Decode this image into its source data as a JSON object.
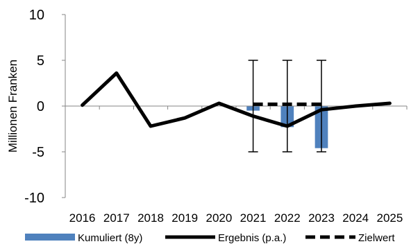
{
  "chart_data": {
    "type": "bar",
    "ylabel": "Millionen Franken",
    "ylim": [
      -10,
      10
    ],
    "yticks": [
      10,
      5,
      0,
      -5,
      -10
    ],
    "ytick_labels": [
      "10",
      "5",
      "0",
      "-5",
      "-10"
    ],
    "categories": [
      "2016",
      "2017",
      "2018",
      "2019",
      "2020",
      "2021",
      "2022",
      "2023",
      "2024",
      "2025"
    ],
    "series": [
      {
        "name": "Kumuliert (8y)",
        "kind": "bar",
        "color": "#4f81bd",
        "values": [
          null,
          null,
          null,
          null,
          null,
          -0.5,
          -2.3,
          -4.6,
          null,
          null
        ]
      },
      {
        "name": "Ergebnis (p.a.)",
        "kind": "line",
        "color": "#000000",
        "values": [
          0.1,
          3.6,
          -2.2,
          -1.3,
          0.3,
          -1.1,
          -2.2,
          -0.4,
          0.0,
          0.3
        ]
      },
      {
        "name": "Zielwert",
        "kind": "dashed-line",
        "color": "#000000",
        "values": [
          null,
          null,
          null,
          null,
          null,
          0.2,
          0.2,
          0.2,
          null,
          null
        ]
      }
    ],
    "error_bars": [
      {
        "category": "2021",
        "low": -5,
        "high": 5
      },
      {
        "category": "2022",
        "low": -5,
        "high": 5
      },
      {
        "category": "2023",
        "low": -5,
        "high": 5
      }
    ],
    "legend_position": "bottom",
    "grid": false
  }
}
